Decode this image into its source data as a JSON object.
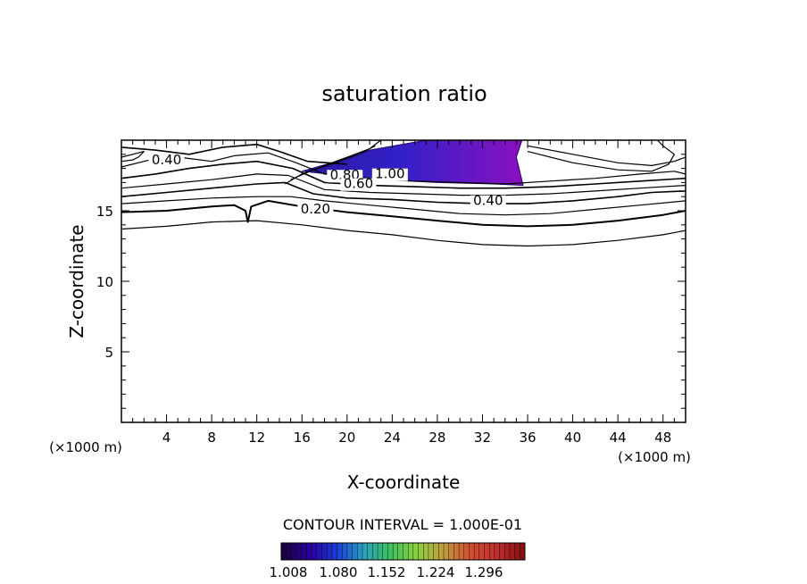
{
  "chart_data": {
    "type": "contour",
    "title": "saturation ratio",
    "xlabel": "X-coordinate",
    "ylabel": "Z-coordinate",
    "x_unit": "(×1000 m)",
    "z_unit": "(×1000 m)",
    "xlim": [
      0,
      50
    ],
    "ylim": [
      0,
      20
    ],
    "x_ticks": [
      4,
      8,
      12,
      16,
      20,
      24,
      28,
      32,
      36,
      40,
      44,
      48
    ],
    "y_ticks": [
      5,
      10,
      15
    ],
    "contour_interval_text": "CONTOUR INTERVAL = 1.000E-01",
    "contour_labels": [
      {
        "text": "0.40",
        "x": 4.0,
        "z": 18.3
      },
      {
        "text": "0.80",
        "x": 19.8,
        "z": 17.2
      },
      {
        "text": "1.00",
        "x": 23.8,
        "z": 17.3
      },
      {
        "text": "0.60",
        "x": 21.0,
        "z": 16.6
      },
      {
        "text": "0.20",
        "x": 17.2,
        "z": 14.8
      },
      {
        "text": "0.40",
        "x": 32.5,
        "z": 15.4
      }
    ],
    "shaded_region": {
      "description_min": 1.008,
      "description_max": 1.36,
      "polygon": [
        [
          16.0,
          17.8
        ],
        [
          19.5,
          18.6
        ],
        [
          22.0,
          19.3
        ],
        [
          27.0,
          20.0
        ],
        [
          35.5,
          20.0
        ],
        [
          35.0,
          18.8
        ],
        [
          35.6,
          16.8
        ],
        [
          33.0,
          16.9
        ],
        [
          28.0,
          17.0
        ],
        [
          23.0,
          17.2
        ],
        [
          19.5,
          17.5
        ]
      ]
    },
    "colorbar": {
      "tick_labels": [
        "1.008",
        "1.080",
        "1.152",
        "1.224",
        "1.296"
      ],
      "colors": [
        "#1a0040",
        "#2b00a0",
        "#1a3bd8",
        "#2aa0c0",
        "#3ec060",
        "#8ad040",
        "#c0a040",
        "#d05030",
        "#c03030",
        "#8a1010"
      ]
    },
    "series": [
      {
        "width": 1.2,
        "points": [
          [
            0,
            13.7
          ],
          [
            4,
            13.9
          ],
          [
            8,
            14.2
          ],
          [
            12,
            14.3
          ],
          [
            16,
            14.0
          ],
          [
            20,
            13.6
          ],
          [
            24,
            13.3
          ],
          [
            28,
            12.9
          ],
          [
            32,
            12.6
          ],
          [
            36,
            12.5
          ],
          [
            40,
            12.6
          ],
          [
            44,
            12.9
          ],
          [
            48,
            13.3
          ],
          [
            50,
            13.6
          ]
        ]
      },
      {
        "width": 2.0,
        "points": [
          [
            0,
            14.9
          ],
          [
            4,
            15.0
          ],
          [
            8,
            15.3
          ],
          [
            10,
            15.4
          ],
          [
            11,
            15.0
          ],
          [
            11.2,
            14.2
          ],
          [
            11.5,
            15.3
          ],
          [
            13,
            15.7
          ],
          [
            16,
            15.3
          ],
          [
            20,
            14.9
          ],
          [
            24,
            14.6
          ],
          [
            28,
            14.3
          ],
          [
            32,
            14.0
          ],
          [
            36,
            13.9
          ],
          [
            40,
            14.0
          ],
          [
            44,
            14.3
          ],
          [
            48,
            14.7
          ],
          [
            50,
            15.0
          ]
        ]
      },
      {
        "width": 1.2,
        "points": [
          [
            0,
            15.5
          ],
          [
            4,
            15.7
          ],
          [
            8,
            15.9
          ],
          [
            12,
            16.0
          ],
          [
            15,
            16.0
          ],
          [
            18,
            15.7
          ],
          [
            22,
            15.4
          ],
          [
            26,
            15.1
          ],
          [
            30,
            14.8
          ],
          [
            34,
            14.7
          ],
          [
            38,
            14.8
          ],
          [
            42,
            15.1
          ],
          [
            46,
            15.4
          ],
          [
            50,
            15.7
          ]
        ]
      },
      {
        "width": 1.6,
        "points": [
          [
            0,
            16.0
          ],
          [
            4,
            16.3
          ],
          [
            8,
            16.6
          ],
          [
            12,
            16.9
          ],
          [
            14.5,
            17.0
          ],
          [
            17,
            16.2
          ],
          [
            20,
            15.9
          ],
          [
            24,
            15.8
          ],
          [
            28,
            15.6
          ],
          [
            32,
            15.5
          ],
          [
            36,
            15.5
          ],
          [
            40,
            15.7
          ],
          [
            44,
            16.0
          ],
          [
            47,
            16.3
          ],
          [
            50,
            16.4
          ]
        ]
      },
      {
        "width": 1.2,
        "points": [
          [
            0,
            16.6
          ],
          [
            4,
            16.9
          ],
          [
            8,
            17.2
          ],
          [
            12,
            17.6
          ],
          [
            14.8,
            17.5
          ],
          [
            18,
            16.5
          ],
          [
            22,
            16.3
          ],
          [
            26,
            16.2
          ],
          [
            30,
            16.1
          ],
          [
            34,
            16.1
          ],
          [
            38,
            16.2
          ],
          [
            42,
            16.4
          ],
          [
            46,
            16.6
          ],
          [
            50,
            16.8
          ]
        ]
      },
      {
        "width": 1.6,
        "points": [
          [
            0,
            17.3
          ],
          [
            3,
            17.6
          ],
          [
            6,
            18.0
          ],
          [
            9,
            18.3
          ],
          [
            12,
            18.5
          ],
          [
            15.2,
            18.0
          ],
          [
            18,
            17.0
          ],
          [
            22,
            16.8
          ],
          [
            26,
            16.7
          ],
          [
            30,
            16.6
          ],
          [
            34,
            16.6
          ],
          [
            38,
            16.7
          ],
          [
            42,
            16.9
          ],
          [
            46,
            17.1
          ],
          [
            50,
            17.3
          ]
        ]
      },
      {
        "width": 1.2,
        "points": [
          [
            0,
            18.1
          ],
          [
            2,
            18.5
          ],
          [
            4,
            18.9
          ],
          [
            6,
            18.7
          ],
          [
            8,
            18.5
          ],
          [
            10,
            18.9
          ],
          [
            13,
            19.1
          ],
          [
            15.5,
            18.4
          ],
          [
            18,
            17.6
          ],
          [
            22,
            17.3
          ],
          [
            26,
            17.1
          ],
          [
            30,
            17.0
          ],
          [
            34,
            16.9
          ],
          [
            38,
            17.1
          ],
          [
            42,
            17.3
          ],
          [
            46,
            17.6
          ],
          [
            49,
            17.8
          ],
          [
            50,
            17.6
          ]
        ]
      },
      {
        "width": 1.2,
        "points": [
          [
            0,
            18.8
          ],
          [
            1,
            19.0
          ],
          [
            2,
            19.2
          ],
          [
            1.5,
            18.8
          ],
          [
            1,
            18.6
          ],
          [
            0,
            18.5
          ]
        ]
      },
      {
        "width": 1.6,
        "points": [
          [
            0,
            19.5
          ],
          [
            3,
            19.3
          ],
          [
            6,
            19.0
          ],
          [
            9,
            19.5
          ],
          [
            12,
            19.7
          ],
          [
            14,
            19.2
          ],
          [
            16.5,
            18.5
          ],
          [
            20,
            18.3
          ]
        ]
      },
      {
        "width": 1.2,
        "points": [
          [
            36,
            19.6
          ],
          [
            40,
            19.0
          ],
          [
            44,
            18.4
          ],
          [
            47,
            18.2
          ],
          [
            49,
            18.5
          ],
          [
            50,
            18.8
          ]
        ]
      },
      {
        "width": 1.2,
        "points": [
          [
            36,
            19.2
          ],
          [
            40,
            18.4
          ],
          [
            44,
            17.9
          ],
          [
            47,
            17.8
          ],
          [
            48.5,
            18.3
          ],
          [
            49,
            19.0
          ],
          [
            48,
            19.6
          ],
          [
            47.5,
            20
          ]
        ]
      },
      {
        "width": 1.2,
        "points": [
          [
            14.5,
            16.9
          ],
          [
            16,
            17.6
          ],
          [
            18,
            18.2
          ],
          [
            20,
            18.8
          ],
          [
            22,
            19.4
          ],
          [
            23,
            20
          ]
        ]
      },
      {
        "width": 1.2,
        "points": [
          [
            15,
            17.2
          ],
          [
            17,
            17.9
          ],
          [
            19,
            18.4
          ],
          [
            21,
            19.0
          ],
          [
            22.5,
            19.6
          ]
        ]
      }
    ]
  }
}
